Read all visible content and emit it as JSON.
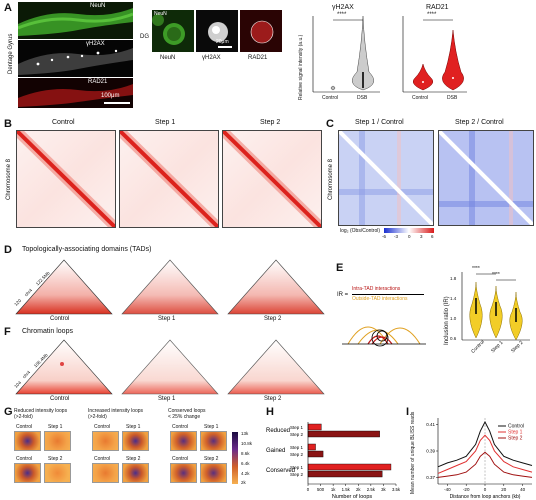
{
  "panels": {
    "A": {
      "letter": "A",
      "side_label": "Dentage Gyrus",
      "channel_labels": [
        "NeuN",
        "γH2AX",
        "RAD21"
      ],
      "scale_bar_left": "100μm",
      "dg_label": "DG",
      "zoom_labels": [
        "NeuN",
        "γH2AX",
        "RAD21"
      ],
      "zoom_scale": "20μm",
      "neun_arrow": "NeuN",
      "violin_titles": [
        "γH2AX",
        "RAD21"
      ],
      "violin_ylabel": "Relative signal intensity (a.u.)",
      "violin_xlabels": [
        "Control",
        "DSB"
      ],
      "sig": "****",
      "colors": {
        "gray": "#bbbbbb",
        "red": "#e02020"
      }
    },
    "B": {
      "letter": "B",
      "ylabel": "Chromosome 8",
      "titles": [
        "Control",
        "Step 1",
        "Step 2"
      ],
      "ticks": [
        "0Mb",
        "50",
        "100"
      ]
    },
    "C": {
      "letter": "C",
      "titles": [
        "Step 1 / Control",
        "Step 2 / Control"
      ],
      "ylabel": "Chromosome 8",
      "colorbar_label": "log₂ (Obs/Control)",
      "colorbar_ticks": [
        "-6",
        "-3",
        "0",
        "3",
        "6"
      ]
    },
    "D": {
      "letter": "D",
      "title": "Topologically-associating domains (TADs)",
      "labels": [
        "Control",
        "Step 1",
        "Step 2"
      ],
      "coords": [
        "120",
        "chr4",
        "122.5Mb"
      ]
    },
    "E": {
      "letter": "E",
      "formula_lhs": "IR =",
      "numerator": "Intra-TAD interactions",
      "denominator": "Outside-TAD interactions",
      "ylabel": "Inclusion ratio (IR)",
      "ticks": [
        "0.6",
        "0.8",
        "1.0",
        "1.2",
        "1.4",
        "1.6",
        "1.8"
      ],
      "xlabels": [
        "Control",
        "Step 1",
        "Step 2"
      ],
      "sig1": "****",
      "sig2": "****"
    },
    "F": {
      "letter": "F",
      "title": "Chromatin loops",
      "labels": [
        "Control",
        "Step 1",
        "Step 2"
      ],
      "coords": [
        "104",
        "chr4",
        "106.4Mb"
      ]
    },
    "G": {
      "letter": "G",
      "group_titles": [
        "Reduced intensity loops\n(>2-fold)",
        "Increased intensity loops\n(>2-fold)",
        "Conserved loops\n< 25% change"
      ],
      "row1": [
        "Control",
        "Step 1"
      ],
      "row2": [
        "Control",
        "Step 2"
      ],
      "colorbar_ticks": [
        "13k",
        "10.8k",
        "8.6k",
        "6.4k",
        "4.2k",
        "2k"
      ]
    },
    "H": {
      "letter": "H",
      "groups": [
        "Reduced",
        "Gained",
        "Conserved"
      ],
      "step_labels": [
        "Step 1",
        "Step 2"
      ],
      "xlabel": "Number of loops",
      "xticks": [
        "0",
        "500",
        "1k",
        "1.5k",
        "2k",
        "2.5k",
        "3k",
        "3.5k"
      ]
    },
    "I": {
      "letter": "I",
      "ylabel": "Mean number of unique BLISS reads",
      "xlabel": "Distance from loop anchors (kb)",
      "legend": [
        "Control",
        "Step 1",
        "Step 2"
      ],
      "yticks": [
        "0.41",
        "0.39",
        "0.37"
      ],
      "xticks": [
        "-40",
        "-20",
        "0",
        "20",
        "40"
      ]
    }
  },
  "chart_data": [
    {
      "type": "bar",
      "title": "",
      "xlabel": "Number of loops",
      "categories": [
        "Reduced",
        "Gained",
        "Conserved"
      ],
      "series": [
        {
          "name": "Step 1",
          "values": [
            530,
            300,
            3300
          ]
        },
        {
          "name": "Step 2",
          "values": [
            2850,
            600,
            2950
          ]
        }
      ],
      "xlim": [
        0,
        3500
      ]
    },
    {
      "type": "line",
      "xlabel": "Distance from loop anchors (kb)",
      "ylabel": "Mean number of unique BLISS reads",
      "x": [
        -50,
        -40,
        -30,
        -20,
        -10,
        -5,
        0,
        5,
        10,
        20,
        30,
        40,
        50
      ],
      "series": [
        {
          "name": "Control",
          "values": [
            0.378,
            0.381,
            0.383,
            0.386,
            0.395,
            0.405,
            0.412,
            0.405,
            0.395,
            0.386,
            0.383,
            0.381,
            0.379
          ]
        },
        {
          "name": "Step 1",
          "values": [
            0.373,
            0.376,
            0.379,
            0.382,
            0.39,
            0.398,
            0.402,
            0.398,
            0.39,
            0.382,
            0.378,
            0.376,
            0.374
          ]
        },
        {
          "name": "Step 2",
          "values": [
            0.37,
            0.371,
            0.372,
            0.374,
            0.38,
            0.386,
            0.389,
            0.386,
            0.38,
            0.374,
            0.372,
            0.371,
            0.37
          ]
        }
      ],
      "ylim": [
        0.365,
        0.415
      ],
      "colors": [
        "#111111",
        "#e03030",
        "#a01010"
      ]
    }
  ]
}
